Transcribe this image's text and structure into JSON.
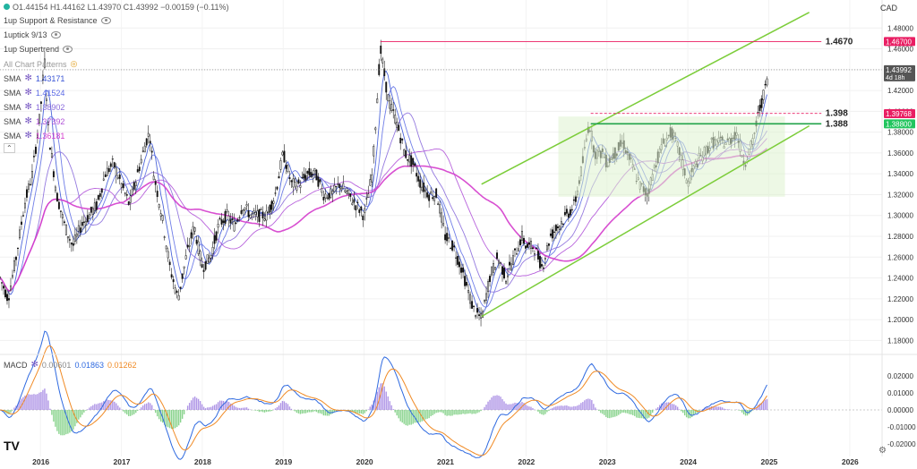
{
  "header": {
    "ohlc": "O1.44154 H1.44162 L1.43970 C1.43992 −0.00159 (−0.11%)",
    "currency": "CAD"
  },
  "indicators": [
    {
      "label": "1up Support & Resistance"
    },
    {
      "label": "1uptick 9/13"
    },
    {
      "label": "1up Supertrend"
    },
    {
      "label": "All Chart Patterns"
    }
  ],
  "sma_legend": [
    {
      "label": "SMA",
      "value": "1.43171",
      "color": "#3a55d6"
    },
    {
      "label": "SMA",
      "value": "1.41524",
      "color": "#5b6ae6"
    },
    {
      "label": "SMA",
      "value": "1.38902",
      "color": "#8a6bdc"
    },
    {
      "label": "SMA",
      "value": "1.37392",
      "color": "#b052d8"
    },
    {
      "label": "SMA",
      "value": "1.36181",
      "color": "#d43ccc"
    }
  ],
  "macd_legend": {
    "label": "MACD",
    "v1": "0.00601",
    "v2": "0.01863",
    "v3": "0.01262"
  },
  "price_axis": [
    "1.48000",
    "1.46000",
    "1.44000",
    "1.42000",
    "1.40000",
    "1.38000",
    "1.36000",
    "1.34000",
    "1.32000",
    "1.30000",
    "1.28000",
    "1.26000",
    "1.24000",
    "1.22000",
    "1.20000",
    "1.18000"
  ],
  "macd_axis": [
    "0.02000",
    "0.01000",
    "0.00000",
    "-0.01000",
    "-0.02000"
  ],
  "price_tags": [
    {
      "value": "1.46700",
      "color": "#e91e63"
    },
    {
      "value": "1.43992",
      "sub": "4d 18h",
      "color": "#555555"
    },
    {
      "value": "1.39768",
      "color": "#e91e63"
    },
    {
      "value": "1.38800",
      "color": "#22c55e"
    }
  ],
  "levels": [
    {
      "label": "1.4670",
      "price": 1.467
    },
    {
      "label": "1.398",
      "price": 1.398
    },
    {
      "label": "1.388",
      "price": 1.388
    }
  ],
  "time_axis": [
    "2016",
    "2017",
    "2018",
    "2019",
    "2020",
    "2021",
    "2022",
    "2023",
    "2024",
    "2025",
    "2026"
  ],
  "chart_data": {
    "type": "candlestick",
    "symbol_currency": "CAD",
    "price_range": [
      1.17,
      1.5
    ],
    "x_range_years": [
      2015.5,
      2026.4
    ],
    "close_path": [
      [
        2015.5,
        1.24
      ],
      [
        2015.6,
        1.22
      ],
      [
        2015.7,
        1.26
      ],
      [
        2015.8,
        1.31
      ],
      [
        2015.9,
        1.34
      ],
      [
        2016.0,
        1.4
      ],
      [
        2016.05,
        1.45
      ],
      [
        2016.1,
        1.38
      ],
      [
        2016.2,
        1.32
      ],
      [
        2016.3,
        1.29
      ],
      [
        2016.4,
        1.27
      ],
      [
        2016.5,
        1.29
      ],
      [
        2016.6,
        1.3
      ],
      [
        2016.7,
        1.31
      ],
      [
        2016.8,
        1.34
      ],
      [
        2016.9,
        1.35
      ],
      [
        2017.0,
        1.33
      ],
      [
        2017.1,
        1.31
      ],
      [
        2017.2,
        1.34
      ],
      [
        2017.3,
        1.37
      ],
      [
        2017.35,
        1.38
      ],
      [
        2017.4,
        1.34
      ],
      [
        2017.5,
        1.3
      ],
      [
        2017.6,
        1.25
      ],
      [
        2017.7,
        1.22
      ],
      [
        2017.8,
        1.26
      ],
      [
        2017.9,
        1.29
      ],
      [
        2018.0,
        1.25
      ],
      [
        2018.1,
        1.26
      ],
      [
        2018.2,
        1.29
      ],
      [
        2018.3,
        1.3
      ],
      [
        2018.4,
        1.29
      ],
      [
        2018.5,
        1.31
      ],
      [
        2018.6,
        1.3
      ],
      [
        2018.7,
        1.3
      ],
      [
        2018.8,
        1.3
      ],
      [
        2018.9,
        1.32
      ],
      [
        2019.0,
        1.36
      ],
      [
        2019.1,
        1.33
      ],
      [
        2019.2,
        1.33
      ],
      [
        2019.3,
        1.34
      ],
      [
        2019.4,
        1.34
      ],
      [
        2019.5,
        1.32
      ],
      [
        2019.6,
        1.32
      ],
      [
        2019.7,
        1.33
      ],
      [
        2019.8,
        1.32
      ],
      [
        2019.9,
        1.31
      ],
      [
        2020.0,
        1.3
      ],
      [
        2020.1,
        1.34
      ],
      [
        2020.2,
        1.46
      ],
      [
        2020.3,
        1.41
      ],
      [
        2020.4,
        1.39
      ],
      [
        2020.5,
        1.36
      ],
      [
        2020.6,
        1.35
      ],
      [
        2020.7,
        1.33
      ],
      [
        2020.8,
        1.32
      ],
      [
        2020.9,
        1.32
      ],
      [
        2021.0,
        1.28
      ],
      [
        2021.1,
        1.27
      ],
      [
        2021.2,
        1.25
      ],
      [
        2021.35,
        1.21
      ],
      [
        2021.45,
        1.2
      ],
      [
        2021.55,
        1.24
      ],
      [
        2021.65,
        1.26
      ],
      [
        2021.75,
        1.24
      ],
      [
        2021.85,
        1.26
      ],
      [
        2021.95,
        1.28
      ],
      [
        2022.0,
        1.27
      ],
      [
        2022.1,
        1.27
      ],
      [
        2022.2,
        1.25
      ],
      [
        2022.3,
        1.28
      ],
      [
        2022.4,
        1.29
      ],
      [
        2022.5,
        1.3
      ],
      [
        2022.6,
        1.31
      ],
      [
        2022.7,
        1.35
      ],
      [
        2022.78,
        1.39
      ],
      [
        2022.85,
        1.36
      ],
      [
        2022.95,
        1.36
      ],
      [
        2023.0,
        1.35
      ],
      [
        2023.1,
        1.36
      ],
      [
        2023.2,
        1.37
      ],
      [
        2023.3,
        1.35
      ],
      [
        2023.4,
        1.33
      ],
      [
        2023.5,
        1.32
      ],
      [
        2023.6,
        1.35
      ],
      [
        2023.7,
        1.37
      ],
      [
        2023.8,
        1.38
      ],
      [
        2023.9,
        1.36
      ],
      [
        2024.0,
        1.33
      ],
      [
        2024.1,
        1.35
      ],
      [
        2024.2,
        1.36
      ],
      [
        2024.3,
        1.37
      ],
      [
        2024.4,
        1.37
      ],
      [
        2024.5,
        1.37
      ],
      [
        2024.6,
        1.38
      ],
      [
        2024.7,
        1.35
      ],
      [
        2024.8,
        1.37
      ],
      [
        2024.88,
        1.4
      ],
      [
        2024.95,
        1.42
      ],
      [
        2025.0,
        1.44
      ]
    ]
  }
}
